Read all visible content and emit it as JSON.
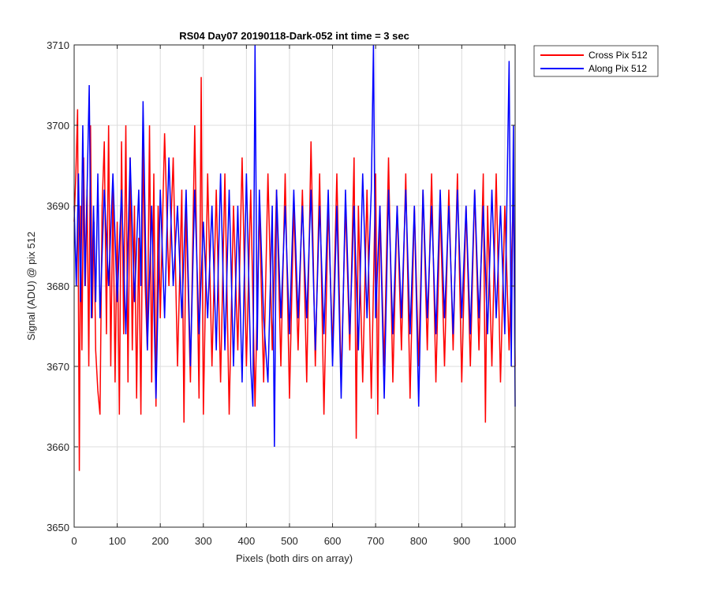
{
  "chart_data": {
    "type": "line",
    "title": "RS04 Day07 20190118-Dark-052 int time = 3 sec",
    "xlabel": "Pixels (both dirs on array)",
    "ylabel": "Signal (ADU) @ pix 512",
    "xlim": [
      0,
      1024
    ],
    "ylim": [
      3650,
      3710
    ],
    "xticks": [
      0,
      100,
      200,
      300,
      400,
      500,
      600,
      700,
      800,
      900,
      1000
    ],
    "yticks": [
      3650,
      3660,
      3670,
      3680,
      3690,
      3700,
      3710
    ],
    "grid": true,
    "legend_position": "outside-top-right",
    "series": [
      {
        "name": "Cross Pix 512",
        "color": "#ff0000",
        "x": [
          0,
          4,
          8,
          10,
          12,
          15,
          18,
          22,
          26,
          30,
          34,
          38,
          42,
          46,
          50,
          55,
          60,
          65,
          70,
          75,
          80,
          85,
          90,
          95,
          100,
          105,
          110,
          115,
          120,
          125,
          130,
          135,
          140,
          145,
          150,
          155,
          160,
          165,
          170,
          175,
          180,
          185,
          190,
          195,
          200,
          210,
          220,
          230,
          240,
          250,
          255,
          260,
          270,
          280,
          290,
          295,
          300,
          310,
          320,
          330,
          340,
          350,
          360,
          370,
          380,
          390,
          400,
          410,
          420,
          430,
          440,
          450,
          460,
          470,
          480,
          490,
          500,
          510,
          520,
          530,
          540,
          550,
          560,
          570,
          580,
          590,
          600,
          610,
          620,
          630,
          640,
          650,
          655,
          660,
          670,
          680,
          690,
          700,
          705,
          710,
          720,
          730,
          740,
          750,
          760,
          770,
          780,
          790,
          800,
          810,
          820,
          830,
          840,
          850,
          860,
          870,
          880,
          890,
          900,
          910,
          920,
          930,
          940,
          950,
          955,
          960,
          970,
          980,
          990,
          1000,
          1010,
          1020,
          1024
        ],
        "y": [
          3688,
          3694,
          3702,
          3678,
          3657,
          3690,
          3672,
          3696,
          3680,
          3692,
          3670,
          3700,
          3676,
          3688,
          3672,
          3667,
          3664,
          3690,
          3698,
          3674,
          3700,
          3670,
          3692,
          3668,
          3688,
          3664,
          3698,
          3674,
          3700,
          3668,
          3696,
          3672,
          3690,
          3666,
          3686,
          3664,
          3698,
          3680,
          3672,
          3700,
          3668,
          3694,
          3665,
          3690,
          3676,
          3699,
          3680,
          3696,
          3670,
          3692,
          3663,
          3690,
          3668,
          3700,
          3666,
          3706,
          3664,
          3694,
          3670,
          3692,
          3668,
          3694,
          3664,
          3690,
          3672,
          3696,
          3670,
          3692,
          3665,
          3690,
          3668,
          3694,
          3672,
          3692,
          3670,
          3694,
          3666,
          3690,
          3672,
          3692,
          3668,
          3698,
          3670,
          3694,
          3664,
          3690,
          3672,
          3694,
          3668,
          3690,
          3672,
          3696,
          3661,
          3690,
          3668,
          3692,
          3666,
          3694,
          3664,
          3690,
          3670,
          3696,
          3668,
          3690,
          3672,
          3694,
          3666,
          3690,
          3670,
          3692,
          3672,
          3694,
          3668,
          3690,
          3670,
          3692,
          3672,
          3694,
          3668,
          3690,
          3670,
          3692,
          3672,
          3694,
          3663,
          3690,
          3670,
          3694,
          3668,
          3690,
          3672,
          3692,
          3670
        ]
      },
      {
        "name": "Along Pix 512",
        "color": "#0000ff",
        "x": [
          0,
          5,
          10,
          15,
          20,
          25,
          30,
          35,
          40,
          45,
          50,
          55,
          60,
          70,
          80,
          90,
          100,
          110,
          120,
          130,
          140,
          150,
          155,
          160,
          170,
          180,
          190,
          200,
          210,
          220,
          230,
          240,
          250,
          260,
          270,
          280,
          290,
          300,
          310,
          320,
          330,
          340,
          350,
          360,
          370,
          380,
          390,
          400,
          410,
          415,
          420,
          425,
          430,
          440,
          450,
          460,
          465,
          470,
          480,
          490,
          500,
          510,
          520,
          530,
          540,
          550,
          560,
          570,
          580,
          590,
          600,
          610,
          620,
          630,
          640,
          650,
          660,
          670,
          680,
          690,
          695,
          700,
          710,
          720,
          730,
          740,
          750,
          760,
          770,
          780,
          790,
          800,
          810,
          820,
          830,
          840,
          850,
          860,
          870,
          880,
          890,
          900,
          910,
          920,
          930,
          940,
          950,
          960,
          970,
          980,
          990,
          1000,
          1010,
          1015,
          1020,
          1024
        ],
        "y": [
          3690,
          3680,
          3694,
          3678,
          3700,
          3680,
          3692,
          3705,
          3676,
          3690,
          3678,
          3694,
          3676,
          3692,
          3680,
          3694,
          3678,
          3692,
          3674,
          3696,
          3678,
          3692,
          3680,
          3703,
          3672,
          3690,
          3666,
          3692,
          3676,
          3696,
          3680,
          3690,
          3676,
          3692,
          3670,
          3692,
          3674,
          3688,
          3676,
          3690,
          3672,
          3694,
          3672,
          3692,
          3670,
          3690,
          3668,
          3694,
          3670,
          3665,
          3710,
          3672,
          3692,
          3676,
          3668,
          3690,
          3660,
          3692,
          3676,
          3690,
          3674,
          3692,
          3676,
          3690,
          3676,
          3692,
          3672,
          3690,
          3674,
          3692,
          3670,
          3690,
          3666,
          3692,
          3674,
          3690,
          3672,
          3694,
          3676,
          3692,
          3710,
          3676,
          3690,
          3666,
          3692,
          3674,
          3690,
          3676,
          3692,
          3674,
          3690,
          3665,
          3692,
          3676,
          3690,
          3674,
          3692,
          3676,
          3690,
          3674,
          3692,
          3676,
          3690,
          3674,
          3692,
          3676,
          3690,
          3674,
          3692,
          3676,
          3690,
          3674,
          3708,
          3670,
          3700,
          3665
        ]
      }
    ]
  }
}
